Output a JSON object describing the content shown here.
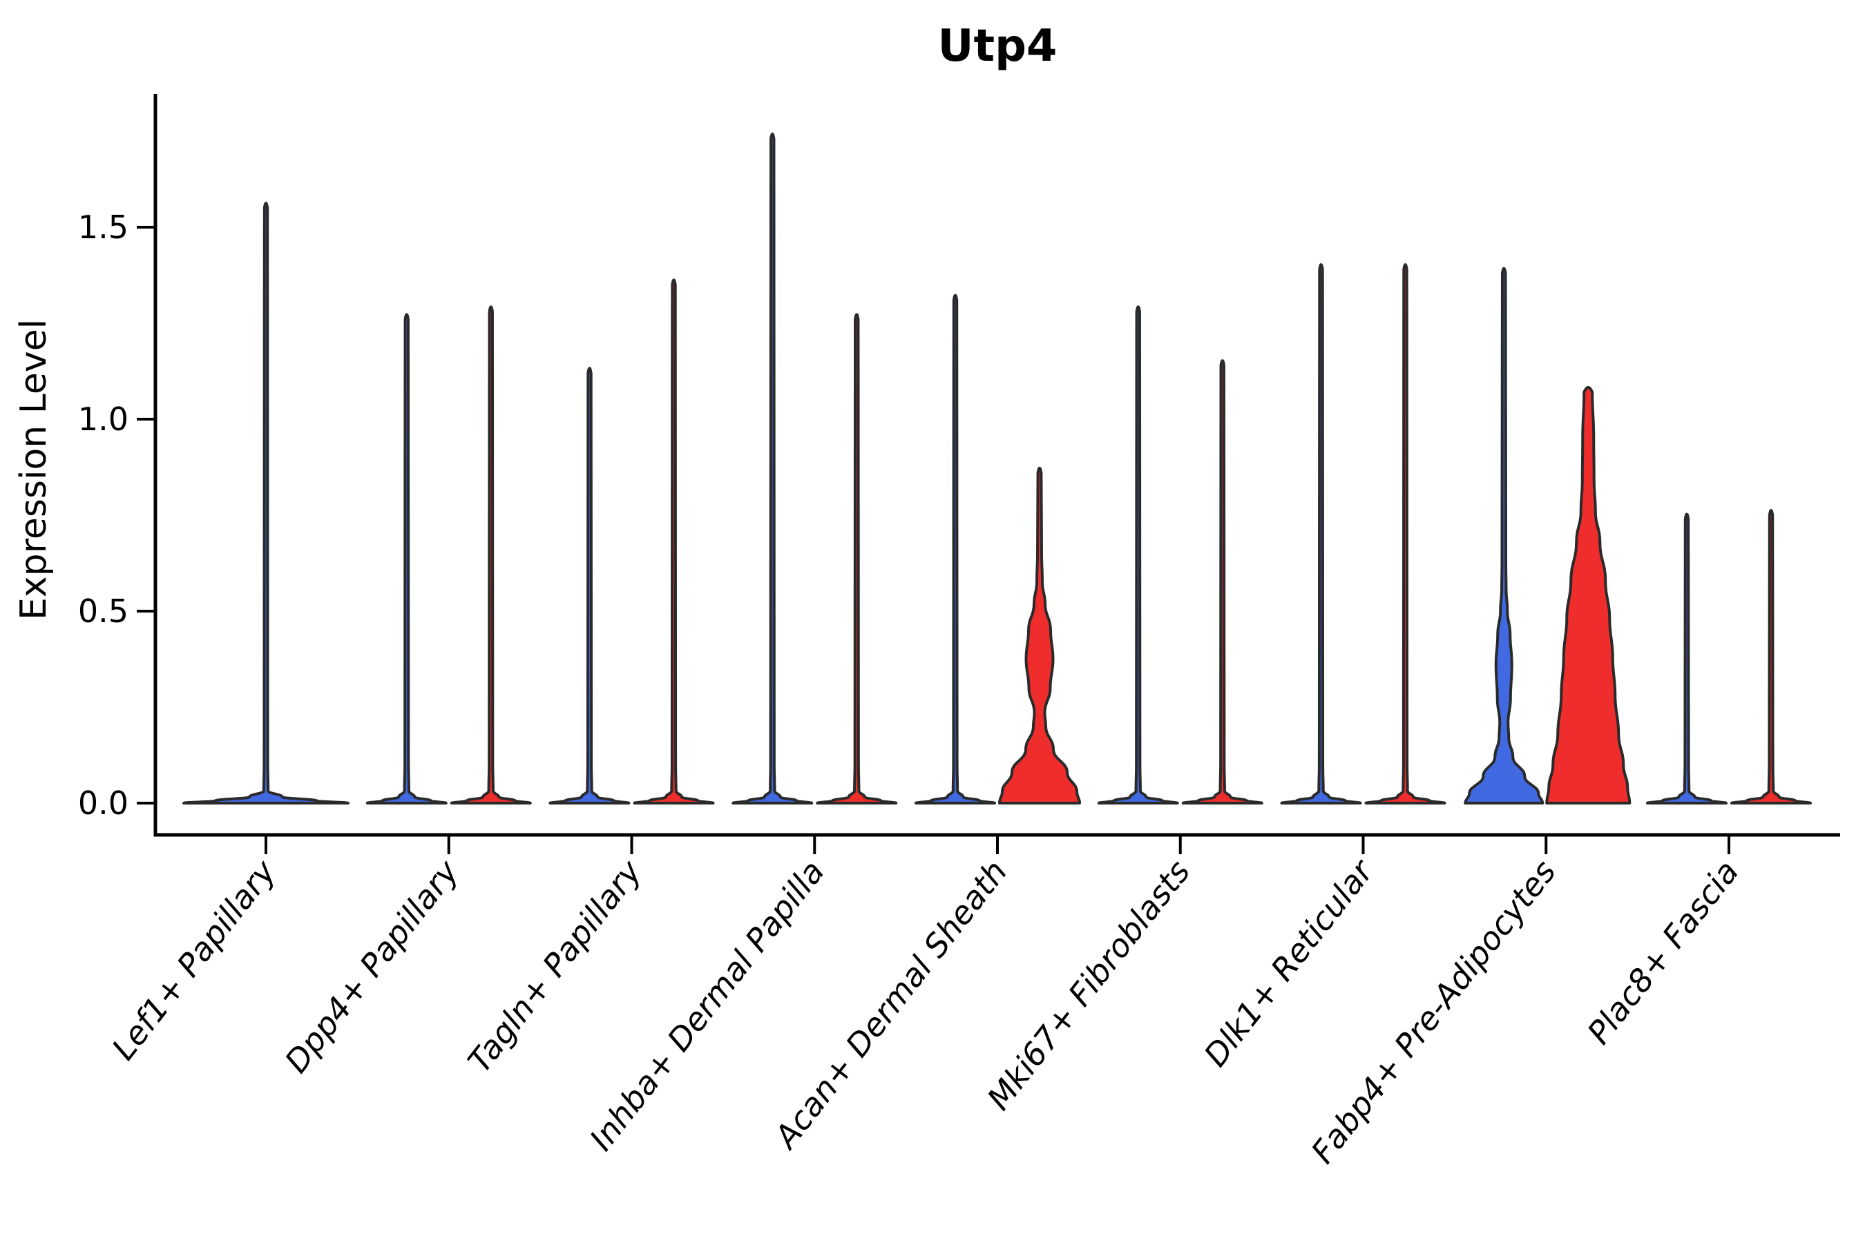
{
  "chart_data": {
    "type": "violin",
    "title": "Utp4",
    "ylabel": "Expression Level",
    "xlabel": "",
    "ylim": [
      -0.08,
      1.84
    ],
    "yticks": [
      "0.0",
      "0.5",
      "1.0",
      "1.5"
    ],
    "ytick_values": [
      0.0,
      0.5,
      1.0,
      1.5
    ],
    "grid": "off",
    "legend": "none",
    "outline_color": "#2A2A2A",
    "axis_color": "#000000",
    "split_colors": {
      "group1": "#4169E1",
      "group2": "#F02D2D"
    },
    "categories": [
      {
        "label": "Lef1+ Papillary",
        "violins": [
          {
            "group": "single",
            "color": "#4169E1",
            "max": 1.57,
            "shape": "spike",
            "offset": 0,
            "base_halfwidth": 119
          }
        ]
      },
      {
        "label": "Dpp4+ Papillary",
        "violins": [
          {
            "group": 1,
            "color": "#4169E1",
            "max": 1.28,
            "shape": "spike",
            "offset": -61,
            "base_halfwidth": 57
          },
          {
            "group": 2,
            "color": "#F02D2D",
            "max": 1.3,
            "shape": "spike",
            "offset": 61,
            "base_halfwidth": 57
          }
        ]
      },
      {
        "label": "Tagln+ Papillary",
        "violins": [
          {
            "group": 1,
            "color": "#4169E1",
            "max": 1.14,
            "shape": "spike",
            "offset": -61,
            "base_halfwidth": 57
          },
          {
            "group": 2,
            "color": "#F02D2D",
            "max": 1.37,
            "shape": "spike",
            "offset": 61,
            "base_halfwidth": 57
          }
        ]
      },
      {
        "label": "Inhba+ Dermal Papilla",
        "violins": [
          {
            "group": 1,
            "color": "#4169E1",
            "max": 1.75,
            "shape": "spike",
            "offset": -61,
            "base_halfwidth": 57
          },
          {
            "group": 2,
            "color": "#F02D2D",
            "max": 1.28,
            "shape": "spike",
            "offset": 61,
            "base_halfwidth": 57
          }
        ]
      },
      {
        "label": "Acan+ Dermal Sheath",
        "violins": [
          {
            "group": 1,
            "color": "#4169E1",
            "max": 1.33,
            "shape": "spike",
            "offset": -61,
            "base_halfwidth": 57
          },
          {
            "group": 2,
            "color": "#F02D2D",
            "max": 0.88,
            "shape": "profile",
            "offset": 61,
            "base_halfwidth": 58,
            "profile": [
              [
                0,
                58
              ],
              [
                0.03,
                54
              ],
              [
                0.08,
                40
              ],
              [
                0.14,
                20
              ],
              [
                0.2,
                9
              ],
              [
                0.235,
                7.5
              ],
              [
                0.3,
                15.5
              ],
              [
                0.375,
                19.5
              ],
              [
                0.45,
                16
              ],
              [
                0.52,
                8
              ],
              [
                0.575,
                4
              ],
              [
                0.65,
                3
              ],
              [
                0.86,
                2.4
              ]
            ]
          }
        ]
      },
      {
        "label": "Mki67+ Fibroblasts",
        "violins": [
          {
            "group": 1,
            "color": "#4169E1",
            "max": 1.3,
            "shape": "spike",
            "offset": -61,
            "base_halfwidth": 57
          },
          {
            "group": 2,
            "color": "#F02D2D",
            "max": 1.16,
            "shape": "spike",
            "offset": 61,
            "base_halfwidth": 57
          }
        ]
      },
      {
        "label": "Dlk1+ Reticular",
        "violins": [
          {
            "group": 1,
            "color": "#4169E1",
            "max": 1.41,
            "shape": "spike",
            "offset": -61,
            "base_halfwidth": 57
          },
          {
            "group": 2,
            "color": "#F02D2D",
            "max": 1.41,
            "shape": "spike",
            "offset": 61,
            "base_halfwidth": 57
          }
        ]
      },
      {
        "label": "Fabp4+ Pre-Adipocytes",
        "violins": [
          {
            "group": 1,
            "color": "#4169E1",
            "max": 1.4,
            "shape": "profile",
            "offset": -61,
            "base_halfwidth": 56,
            "profile": [
              [
                0,
                56
              ],
              [
                0.025,
                50
              ],
              [
                0.07,
                30
              ],
              [
                0.12,
                13
              ],
              [
                0.17,
                7
              ],
              [
                0.21,
                6
              ],
              [
                0.27,
                9.5
              ],
              [
                0.36,
                11.5
              ],
              [
                0.44,
                9
              ],
              [
                0.5,
                5
              ],
              [
                0.56,
                3.2
              ],
              [
                0.62,
                2.8
              ],
              [
                1.38,
                2.3
              ]
            ]
          },
          {
            "group": 2,
            "color": "#F02D2D",
            "max": 1.09,
            "shape": "profile",
            "offset": 61,
            "base_halfwidth": 60,
            "profile": [
              [
                0,
                60
              ],
              [
                0.04,
                57
              ],
              [
                0.1,
                51
              ],
              [
                0.18,
                44
              ],
              [
                0.28,
                39
              ],
              [
                0.38,
                35.5
              ],
              [
                0.48,
                31
              ],
              [
                0.58,
                25
              ],
              [
                0.68,
                17
              ],
              [
                0.76,
                10.5
              ],
              [
                0.84,
                8.5
              ],
              [
                0.95,
                8
              ],
              [
                1.07,
                6
              ]
            ]
          }
        ]
      },
      {
        "label": "Plac8+ Fascia",
        "violins": [
          {
            "group": 1,
            "color": "#4169E1",
            "max": 0.76,
            "shape": "spike",
            "offset": -61,
            "base_halfwidth": 57
          },
          {
            "group": 2,
            "color": "#F02D2D",
            "max": 0.77,
            "shape": "spike",
            "offset": 61,
            "base_halfwidth": 57
          }
        ]
      }
    ]
  }
}
